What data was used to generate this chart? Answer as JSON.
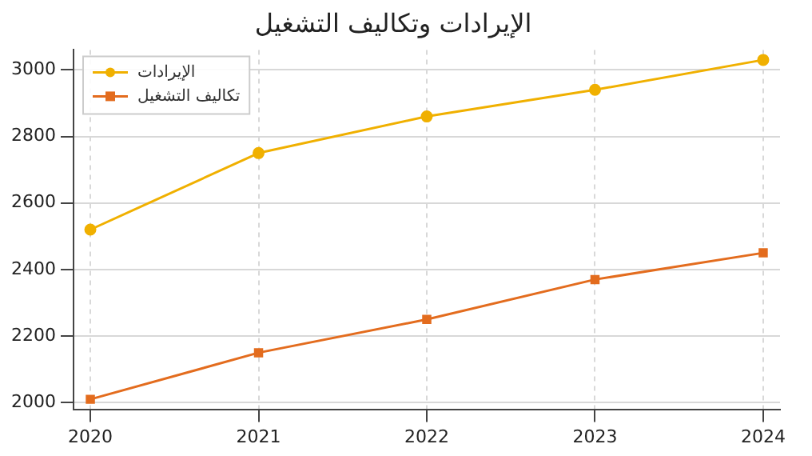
{
  "chart_data": {
    "type": "line",
    "title": "الإيرادات وتكاليف التشغيل",
    "x": [
      2020,
      2021,
      2022,
      2023,
      2024
    ],
    "series": [
      {
        "name": "الإيرادات",
        "color": "#f0b000",
        "values": [
          2520,
          2750,
          2860,
          2940,
          3030
        ],
        "marker": "circle"
      },
      {
        "name": "تكاليف التشغيل",
        "color": "#e36c1e",
        "values": [
          2010,
          2150,
          2250,
          2370,
          2450
        ],
        "marker": "square"
      }
    ],
    "xlim": [
      2019.9,
      2024.1
    ],
    "xticks": [
      2020,
      2021,
      2022,
      2023,
      2024
    ],
    "ylim": [
      1980,
      3060
    ],
    "yticks": [
      2000,
      2200,
      2400,
      2600,
      2800,
      3000
    ],
    "grid": true,
    "legend": "top left",
    "line_style": "solid"
  }
}
